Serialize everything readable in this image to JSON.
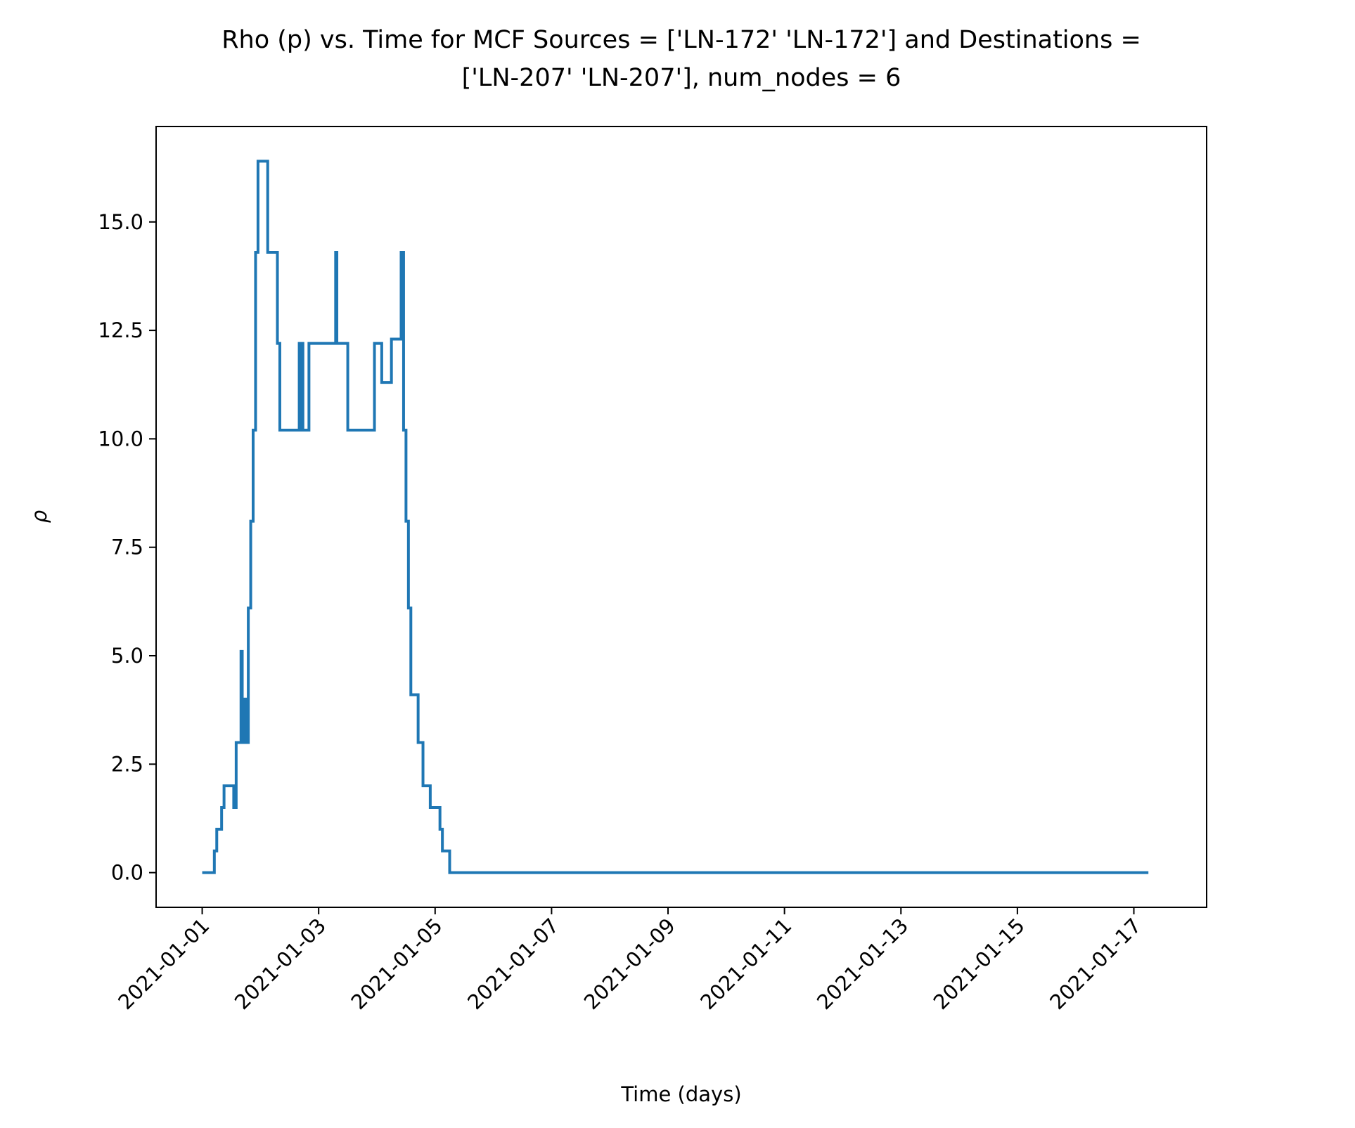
{
  "chart_data": {
    "type": "line",
    "title_line1": "Rho (p) vs. Time for MCF Sources = ['LN-172' 'LN-172'] and Destinations =",
    "title_line2": "['LN-207' 'LN-207'], num_nodes = 6",
    "xlabel": "Time (days)",
    "ylabel": "ρ",
    "line_style": "step",
    "grid": false,
    "xlim": [
      "2020-12-31T05:00",
      "2021-01-18T06:00"
    ],
    "ylim": [
      -0.8,
      17.2
    ],
    "x_ticks": [
      "2021-01-01",
      "2021-01-03",
      "2021-01-05",
      "2021-01-07",
      "2021-01-09",
      "2021-01-11",
      "2021-01-13",
      "2021-01-15",
      "2021-01-17"
    ],
    "y_ticks": [
      0.0,
      2.5,
      5.0,
      7.5,
      10.0,
      12.5,
      15.0
    ],
    "y_tick_labels": [
      "0.0",
      "2.5",
      "5.0",
      "7.5",
      "10.0",
      "12.5",
      "15.0"
    ],
    "series": [
      {
        "color": "#1f77b4",
        "x": [
          "2021-01-01T00:00",
          "2021-01-01T05:00",
          "2021-01-01T06:00",
          "2021-01-01T08:00",
          "2021-01-01T09:00",
          "2021-01-01T11:00",
          "2021-01-01T13:00",
          "2021-01-01T14:00",
          "2021-01-01T16:00",
          "2021-01-01T16:30",
          "2021-01-01T17:00",
          "2021-01-01T18:00",
          "2021-01-01T19:00",
          "2021-01-01T20:00",
          "2021-01-01T21:00",
          "2021-01-01T22:00",
          "2021-01-01T23:00",
          "2021-01-02T00:00",
          "2021-01-02T03:00",
          "2021-01-02T07:00",
          "2021-01-02T08:00",
          "2021-01-02T16:00",
          "2021-01-02T16:30",
          "2021-01-02T17:00",
          "2021-01-02T17:30",
          "2021-01-02T18:00",
          "2021-01-02T20:00",
          "2021-01-03T07:00",
          "2021-01-03T07:30",
          "2021-01-03T08:00",
          "2021-01-03T12:00",
          "2021-01-03T23:00",
          "2021-01-04T02:00",
          "2021-01-04T03:00",
          "2021-01-04T06:00",
          "2021-01-04T10:00",
          "2021-01-04T11:00",
          "2021-01-04T12:00",
          "2021-01-04T13:00",
          "2021-01-04T14:00",
          "2021-01-04T17:00",
          "2021-01-04T19:00",
          "2021-01-04T22:00",
          "2021-01-05T02:00",
          "2021-01-05T03:00",
          "2021-01-05T04:00",
          "2021-01-05T06:00",
          "2021-01-17T06:00"
        ],
        "y": [
          0.0,
          0.5,
          1.0,
          1.5,
          2.0,
          2.0,
          1.5,
          3.0,
          5.1,
          3.0,
          4.0,
          3.0,
          6.1,
          8.1,
          10.2,
          14.3,
          16.4,
          16.4,
          14.3,
          12.2,
          10.2,
          12.2,
          10.2,
          12.2,
          10.2,
          10.2,
          12.2,
          14.3,
          12.2,
          12.2,
          10.2,
          12.2,
          11.3,
          11.3,
          12.3,
          14.3,
          10.2,
          8.1,
          6.1,
          4.1,
          3.0,
          2.0,
          1.5,
          1.0,
          0.5,
          0.5,
          0.0,
          0.0
        ]
      }
    ]
  }
}
